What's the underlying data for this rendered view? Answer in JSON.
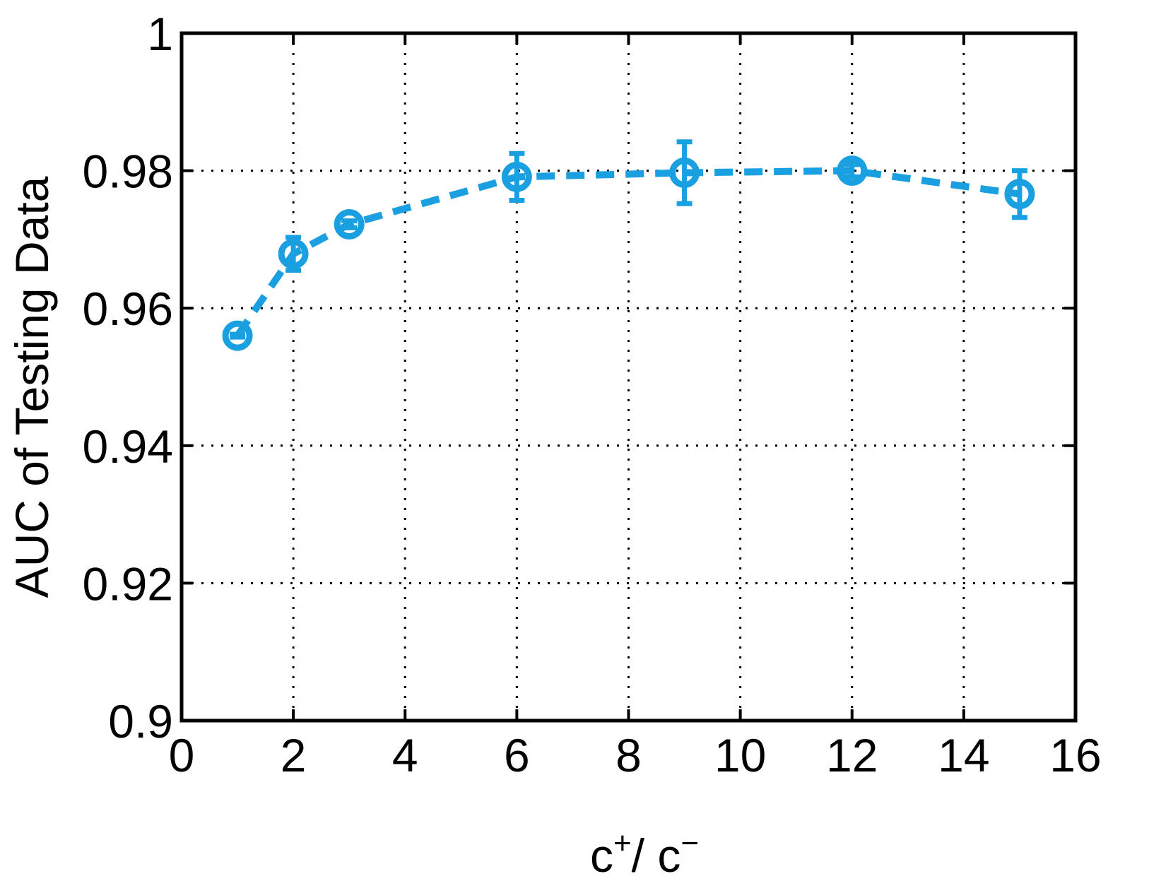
{
  "chart_data": {
    "type": "line",
    "title": "",
    "xlabel": {
      "base1": "c",
      "sup1": "+",
      "sep": "/ ",
      "base2": "c",
      "sup2": "−"
    },
    "ylabel": "AUC of Testing Data",
    "xlim": [
      0,
      16
    ],
    "ylim": [
      0.9,
      1.0
    ],
    "xticks": [
      0,
      2,
      4,
      6,
      8,
      10,
      12,
      14,
      16
    ],
    "xtick_labels": [
      "0",
      "2",
      "4",
      "6",
      "8",
      "10",
      "12",
      "14",
      "16"
    ],
    "yticks": [
      0.9,
      0.92,
      0.94,
      0.96,
      0.98,
      1.0
    ],
    "ytick_labels": [
      "0.9",
      "0.92",
      "0.94",
      "0.96",
      "0.98",
      "1"
    ],
    "grid": true,
    "grid_style": "dotted",
    "line_style": "dashed",
    "marker": "circle",
    "color": "#1a9fe0",
    "series": [
      {
        "x": [
          1,
          2,
          3,
          6,
          9,
          12,
          15
        ],
        "y": [
          0.956,
          0.9679,
          0.9722,
          0.9791,
          0.9797,
          0.98,
          0.9766
        ],
        "err": [
          0.0002,
          0.0024,
          0.0005,
          0.0034,
          0.0045,
          0.0009,
          0.0034
        ]
      }
    ]
  }
}
